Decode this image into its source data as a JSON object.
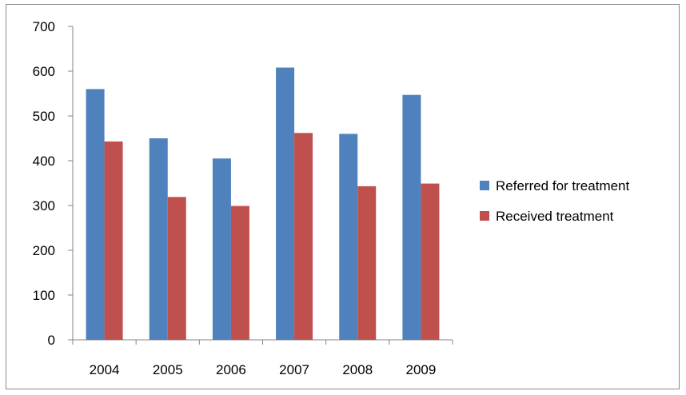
{
  "chart_data": {
    "type": "bar",
    "title": "",
    "xlabel": "",
    "ylabel": "",
    "categories": [
      "2004",
      "2005",
      "2006",
      "2007",
      "2008",
      "2009"
    ],
    "series": [
      {
        "name": "Referred for treatment",
        "color": "#4f81bd",
        "values": [
          560,
          450,
          405,
          608,
          460,
          547
        ]
      },
      {
        "name": "Received treatment",
        "color": "#c0504d",
        "values": [
          443,
          319,
          299,
          462,
          343,
          349
        ]
      }
    ],
    "ylim": [
      0,
      700
    ],
    "yticks": [
      "0",
      "100",
      "200",
      "300",
      "400",
      "500",
      "600",
      "700"
    ],
    "grid": false,
    "legend_position": "right"
  }
}
